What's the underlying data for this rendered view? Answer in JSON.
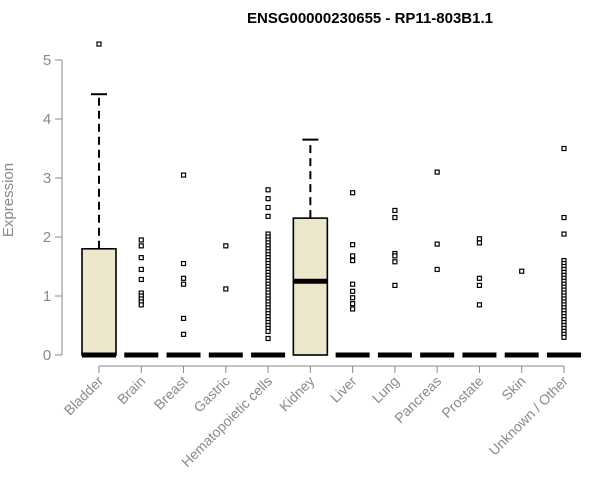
{
  "chart_data": {
    "type": "box",
    "title": "ENSG00000230655 - RP11-803B1.1",
    "xlabel": "",
    "ylabel": "Expression",
    "ylim": [
      0,
      5.3
    ],
    "yticks": [
      0,
      1,
      2,
      3,
      4,
      5
    ],
    "grid": false,
    "box_fill": "#ece6cc",
    "categories": [
      "Bladder",
      "Brain",
      "Breast",
      "Gastric",
      "Hematopoietic cells",
      "Kidney",
      "Liver",
      "Lung",
      "Pancreas",
      "Prostate",
      "Skin",
      "Unknown / Other"
    ],
    "boxes": [
      {
        "category": "Bladder",
        "q1": 0,
        "median": 0,
        "q3": 1.8,
        "whisker_low": 0,
        "whisker_high": 4.42,
        "outliers": [
          5.27
        ]
      },
      {
        "category": "Brain",
        "q1": 0,
        "median": 0,
        "q3": 0,
        "whisker_low": 0,
        "whisker_high": 0,
        "outliers": [
          1.95,
          1.85,
          1.65,
          1.45,
          1.28,
          1.05,
          1.0,
          0.95,
          0.9,
          0.85
        ]
      },
      {
        "category": "Breast",
        "q1": 0,
        "median": 0,
        "q3": 0,
        "whisker_low": 0,
        "whisker_high": 0,
        "outliers": [
          3.05,
          1.55,
          1.3,
          1.2,
          0.62,
          0.35
        ]
      },
      {
        "category": "Gastric",
        "q1": 0,
        "median": 0,
        "q3": 0,
        "whisker_low": 0,
        "whisker_high": 0,
        "outliers": [
          1.85,
          1.12
        ]
      },
      {
        "category": "Hematopoietic cells",
        "q1": 0,
        "median": 0,
        "q3": 0,
        "whisker_low": 0,
        "whisker_high": 0,
        "outliers": [
          2.8,
          2.65,
          2.5,
          2.35,
          2.05,
          2.0,
          1.95,
          1.9,
          1.85,
          1.8,
          1.75,
          1.7,
          1.65,
          1.6,
          1.55,
          1.5,
          1.45,
          1.4,
          1.35,
          1.3,
          1.25,
          1.2,
          1.15,
          1.1,
          1.05,
          1.0,
          0.95,
          0.9,
          0.85,
          0.8,
          0.75,
          0.7,
          0.65,
          0.6,
          0.55,
          0.5,
          0.45,
          0.4,
          0.28
        ]
      },
      {
        "category": "Kidney",
        "q1": 0,
        "median": 1.25,
        "q3": 2.32,
        "whisker_low": 0,
        "whisker_high": 3.65,
        "outliers": []
      },
      {
        "category": "Liver",
        "q1": 0,
        "median": 0,
        "q3": 0,
        "whisker_low": 0,
        "whisker_high": 0,
        "outliers": [
          2.75,
          1.87,
          1.68,
          1.6,
          1.2,
          1.08,
          0.97,
          0.87,
          0.78
        ]
      },
      {
        "category": "Lung",
        "q1": 0,
        "median": 0,
        "q3": 0,
        "whisker_low": 0,
        "whisker_high": 0,
        "outliers": [
          2.45,
          2.33,
          1.72,
          1.68,
          1.58,
          1.18
        ]
      },
      {
        "category": "Pancreas",
        "q1": 0,
        "median": 0,
        "q3": 0,
        "whisker_low": 0,
        "whisker_high": 0,
        "outliers": [
          3.1,
          1.88,
          1.45
        ]
      },
      {
        "category": "Prostate",
        "q1": 0,
        "median": 0,
        "q3": 0,
        "whisker_low": 0,
        "whisker_high": 0,
        "outliers": [
          1.97,
          1.9,
          1.3,
          1.18,
          0.85
        ]
      },
      {
        "category": "Skin",
        "q1": 0,
        "median": 0,
        "q3": 0,
        "whisker_low": 0,
        "whisker_high": 0,
        "outliers": [
          1.42
        ]
      },
      {
        "category": "Unknown / Other",
        "q1": 0,
        "median": 0,
        "q3": 0,
        "whisker_low": 0,
        "whisker_high": 0,
        "outliers": [
          3.5,
          2.33,
          2.05,
          1.6,
          1.55,
          1.5,
          1.45,
          1.4,
          1.35,
          1.3,
          1.25,
          1.2,
          1.15,
          1.1,
          1.05,
          1.0,
          0.95,
          0.9,
          0.85,
          0.8,
          0.75,
          0.7,
          0.65,
          0.6,
          0.55,
          0.5,
          0.45,
          0.4,
          0.35,
          0.3
        ]
      }
    ]
  }
}
